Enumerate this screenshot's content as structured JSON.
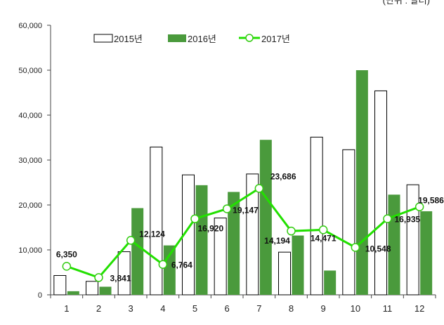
{
  "unit_note": "(단위 : 달러)",
  "chart_data": {
    "type": "bar",
    "categories": [
      "1",
      "2",
      "3",
      "4",
      "5",
      "6",
      "7",
      "8",
      "9",
      "10",
      "11",
      "12"
    ],
    "series": [
      {
        "name": "2015년",
        "kind": "bar",
        "color": "#ffffff",
        "stroke": "#000000",
        "values": [
          4300,
          3000,
          9600,
          32900,
          26700,
          17100,
          26900,
          9500,
          35100,
          32300,
          45400,
          24500
        ]
      },
      {
        "name": "2016년",
        "kind": "bar",
        "color": "#4a9a3c",
        "values": [
          800,
          1800,
          19300,
          11000,
          24400,
          22900,
          34500,
          13200,
          5400,
          50000,
          22300,
          18600
        ]
      },
      {
        "name": "2017년",
        "kind": "line",
        "color": "#22e000",
        "values": [
          6350,
          3841,
          12124,
          6764,
          16920,
          19147,
          23686,
          14194,
          14471,
          10548,
          16935,
          19586
        ],
        "labels": [
          "6,350",
          "3,841",
          "12,124",
          "6,764",
          "16,920",
          "19,147",
          "23,686",
          "14,194",
          "14,471",
          "10,548",
          "16,935",
          "19,586"
        ]
      }
    ],
    "ylim": [
      0,
      60000
    ],
    "yticks": [
      0,
      10000,
      20000,
      30000,
      40000,
      50000,
      60000
    ],
    "ytick_labels": [
      "0",
      "10,000",
      "20,000",
      "30,000",
      "40,000",
      "50,000",
      "60,000"
    ],
    "legend_position": "top",
    "grid": false
  }
}
